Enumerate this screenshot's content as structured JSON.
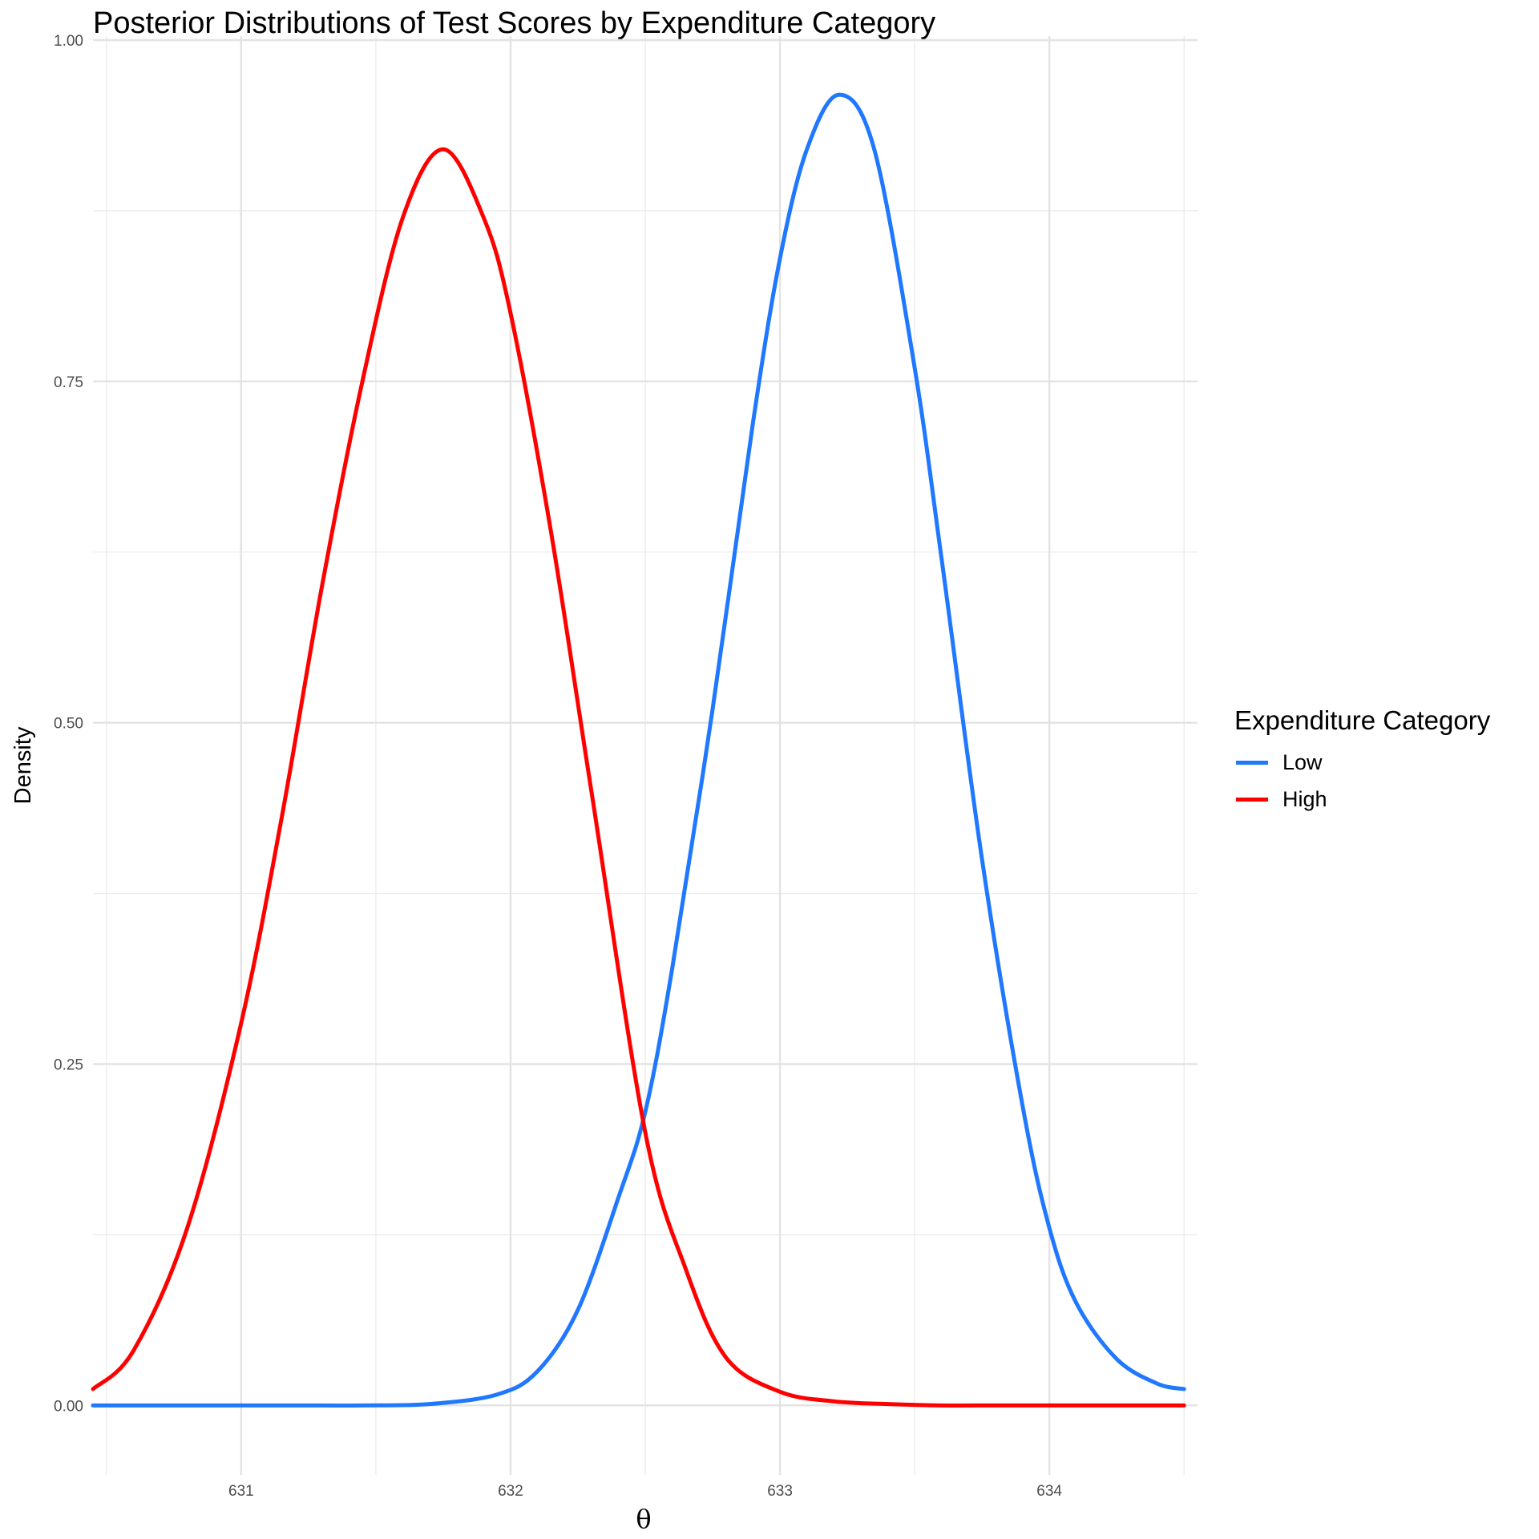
{
  "chart_data": {
    "type": "line",
    "title": "Posterior Distributions of Test Scores by Expenditure Category",
    "xlabel": "θ",
    "ylabel": "Density",
    "xlim": [
      630.45,
      634.55
    ],
    "ylim": [
      -0.045,
      1.0
    ],
    "x_ticks": [
      631,
      632,
      633,
      634
    ],
    "x_tick_labels": [
      "631",
      "632",
      "633",
      "634"
    ],
    "y_ticks": [
      0,
      0.25,
      0.5,
      0.75,
      1.0
    ],
    "y_tick_labels": [
      "0.00",
      "0.25",
      "0.50",
      "0.75",
      "1.00"
    ],
    "grid": true,
    "legend": {
      "title": "Expenditure Category",
      "position": "right"
    },
    "series": [
      {
        "name": "Low",
        "color": "#1f78ff",
        "x": [
          630.45,
          630.7,
          630.95,
          631.2,
          631.45,
          631.7,
          631.95,
          632.1,
          632.25,
          632.4,
          632.5,
          632.6,
          632.75,
          632.9,
          633.0,
          633.1,
          633.22,
          633.35,
          633.5,
          633.6,
          633.75,
          633.9,
          634.0,
          634.1,
          634.25,
          634.4,
          634.5
        ],
        "y": [
          0.0,
          0.0,
          0.0,
          0.0,
          0.0,
          0.001,
          0.008,
          0.025,
          0.07,
          0.152,
          0.215,
          0.32,
          0.51,
          0.72,
          0.84,
          0.92,
          0.96,
          0.92,
          0.76,
          0.62,
          0.4,
          0.22,
          0.13,
          0.075,
          0.034,
          0.016,
          0.012
        ]
      },
      {
        "name": "High",
        "color": "#ff0000",
        "x": [
          630.45,
          630.6,
          630.8,
          631.0,
          631.15,
          631.3,
          631.45,
          631.6,
          631.75,
          631.9,
          632.0,
          632.15,
          632.3,
          632.5,
          632.65,
          632.8,
          633.0,
          633.2,
          633.4,
          633.6,
          633.8,
          634.0,
          634.25,
          634.5
        ],
        "y": [
          0.012,
          0.04,
          0.13,
          0.28,
          0.43,
          0.6,
          0.75,
          0.87,
          0.92,
          0.87,
          0.8,
          0.64,
          0.45,
          0.2,
          0.1,
          0.035,
          0.01,
          0.003,
          0.001,
          0.0,
          0.0,
          0.0,
          0.0,
          0.0
        ]
      }
    ]
  }
}
